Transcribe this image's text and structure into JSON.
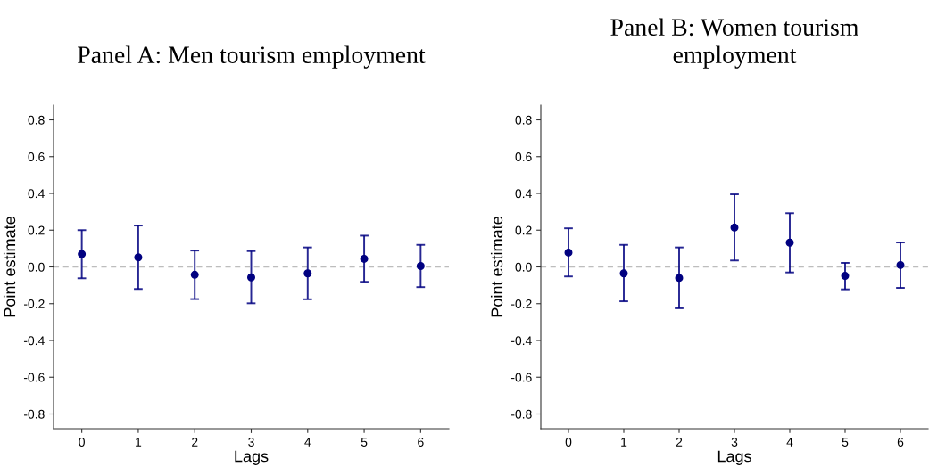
{
  "chart_data": [
    {
      "type": "scatter",
      "title": "Panel A: Men tourism employment",
      "xlabel": "Lags",
      "ylabel": "Point estimate",
      "categories": [
        "0",
        "1",
        "2",
        "3",
        "4",
        "5",
        "6"
      ],
      "series": [
        {
          "color": "#000080",
          "values": [
            0.07,
            0.052,
            -0.043,
            -0.057,
            -0.035,
            0.044,
            0.005
          ],
          "errors": [
            [
              -0.062,
              0.2
            ],
            [
              -0.12,
              0.225
            ],
            [
              -0.175,
              0.089
            ],
            [
              -0.198,
              0.086
            ],
            [
              -0.176,
              0.106
            ],
            [
              -0.081,
              0.17
            ],
            [
              -0.11,
              0.12
            ]
          ]
        }
      ],
      "ylim": [
        -0.88,
        0.88
      ],
      "yticks": [
        {
          "value": -0.8,
          "label": "-0.8"
        },
        {
          "value": -0.6,
          "label": "-0.6"
        },
        {
          "value": -0.4,
          "label": "-0.4"
        },
        {
          "value": -0.2,
          "label": "-0.2"
        },
        {
          "value": 0,
          "label": "0.0"
        },
        0.2,
        0.4,
        0.6,
        0.8
      ],
      "ref_lines": [
        {
          "axis": "y",
          "value": 0,
          "color": "#bdbdbd",
          "line_style": "dashed"
        }
      ],
      "marker": "circle",
      "grid": false,
      "legend": false
    },
    {
      "type": "scatter",
      "title": "Panel B: Women tourism\nemployment",
      "xlabel": "Lags",
      "ylabel": "Point estimate",
      "categories": [
        "0",
        "1",
        "2",
        "3",
        "4",
        "5",
        "6"
      ],
      "series": [
        {
          "color": "#000080",
          "values": [
            0.078,
            -0.035,
            -0.06,
            0.214,
            0.132,
            -0.049,
            0.01
          ],
          "errors": [
            [
              -0.052,
              0.21
            ],
            [
              -0.187,
              0.12
            ],
            [
              -0.225,
              0.106
            ],
            [
              0.035,
              0.395
            ],
            [
              -0.03,
              0.292
            ],
            [
              -0.122,
              0.022
            ],
            [
              -0.114,
              0.133
            ]
          ]
        }
      ],
      "ylim": [
        -0.88,
        0.88
      ],
      "yticks": [
        {
          "value": -0.8,
          "label": "-0.8"
        },
        {
          "value": -0.6,
          "label": "-0.6"
        },
        {
          "value": -0.4,
          "label": "-0.4"
        },
        {
          "value": -0.2,
          "label": "-0.2"
        },
        {
          "value": 0,
          "label": "0.0"
        },
        0.2,
        0.4,
        0.6,
        0.8
      ],
      "ref_lines": [
        {
          "axis": "y",
          "value": 0,
          "color": "#bdbdbd",
          "line_style": "dashed"
        }
      ],
      "marker": "circle",
      "grid": false,
      "legend": false
    }
  ]
}
